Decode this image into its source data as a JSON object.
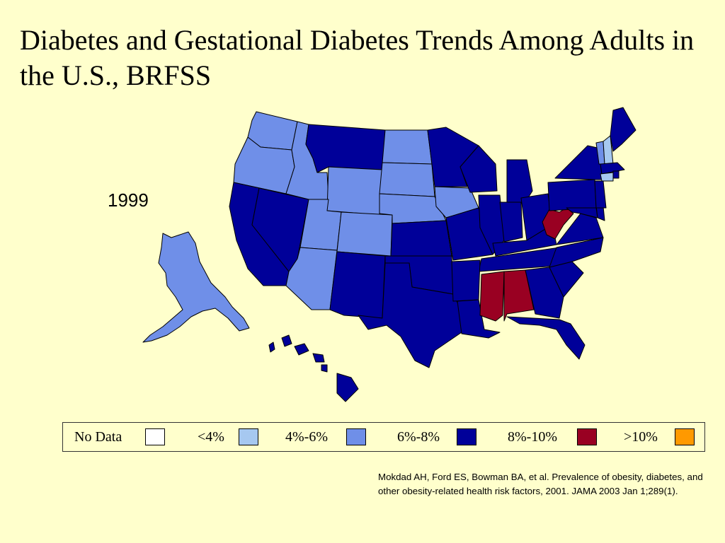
{
  "slide": {
    "title": "Diabetes and Gestational Diabetes Trends Among Adults in the U.S., BRFSS",
    "year": "1999",
    "citation": "Mokdad AH, Ford ES, Bowman BA, et al. Prevalence of obesity, diabetes, and other obesity-related health risk factors, 2001. JAMA 2003 Jan 1;289(1)."
  },
  "colors": {
    "background": "#FFFFCC",
    "no_data": "#FFFFFF",
    "lt4": "#A6C8F0",
    "4to6": "#6F8FE8",
    "6to8": "#000099",
    "8to10": "#990022",
    "gt10": "#FF9900"
  },
  "legend": [
    {
      "label": "No Data",
      "color": "#FFFFFF"
    },
    {
      "label": "<4%",
      "color": "#A6C8F0"
    },
    {
      "label": "4%-6%",
      "color": "#6F8FE8"
    },
    {
      "label": "6%-8%",
      "color": "#000099"
    },
    {
      "label": "8%-10%",
      "color": "#990022"
    },
    {
      "label": ">10%",
      "color": "#FF9900"
    }
  ],
  "states": {
    "WA": "4%-6%",
    "OR": "4%-6%",
    "ID": "4%-6%",
    "MT": "6%-8%",
    "WY": "4%-6%",
    "ND": "4%-6%",
    "SD": "4%-6%",
    "NE": "4%-6%",
    "IA": "4%-6%",
    "UT": "4%-6%",
    "CO": "4%-6%",
    "AZ": "4%-6%",
    "AK": "4%-6%",
    "VT": "4%-6%",
    "NH": "<4%",
    "CT": "<4%",
    "CA": "6%-8%",
    "NV": "6%-8%",
    "NM": "6%-8%",
    "TX": "6%-8%",
    "OK": "6%-8%",
    "KS": "6%-8%",
    "MN": "6%-8%",
    "WI": "6%-8%",
    "MI": "6%-8%",
    "IL": "6%-8%",
    "IN": "6%-8%",
    "OH": "6%-8%",
    "KY": "6%-8%",
    "TN": "6%-8%",
    "MO": "6%-8%",
    "AR": "6%-8%",
    "LA": "6%-8%",
    "GA": "6%-8%",
    "FL": "6%-8%",
    "SC": "6%-8%",
    "NC": "6%-8%",
    "VA": "6%-8%",
    "MD": "6%-8%",
    "DE": "6%-8%",
    "NJ": "6%-8%",
    "PA": "6%-8%",
    "NY": "6%-8%",
    "MA": "6%-8%",
    "RI": "6%-8%",
    "ME": "6%-8%",
    "HI": "6%-8%",
    "WV": "8%-10%",
    "MS": "8%-10%",
    "AL": "8%-10%"
  }
}
